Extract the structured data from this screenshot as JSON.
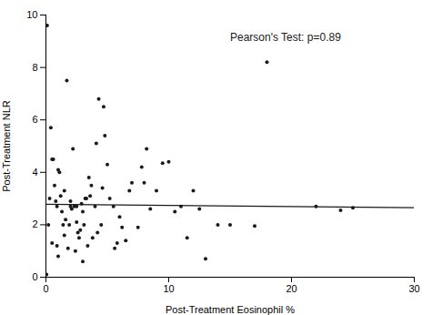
{
  "chart_data": {
    "type": "scatter",
    "x": [
      0.05,
      0.1,
      0.2,
      0.3,
      0.4,
      0.5,
      0.5,
      0.6,
      0.7,
      0.8,
      0.9,
      0.9,
      1.0,
      1.0,
      1.1,
      1.2,
      1.3,
      1.4,
      1.5,
      1.5,
      1.6,
      1.7,
      1.8,
      1.9,
      2.0,
      2.0,
      2.1,
      2.2,
      2.3,
      2.4,
      2.5,
      2.5,
      2.6,
      2.7,
      2.8,
      2.9,
      3.0,
      3.0,
      3.1,
      3.2,
      3.3,
      3.4,
      3.5,
      3.6,
      3.7,
      3.8,
      4.0,
      4.1,
      4.2,
      4.3,
      4.5,
      4.6,
      4.7,
      4.8,
      5.0,
      5.2,
      5.5,
      5.6,
      5.8,
      6.0,
      6.2,
      6.5,
      6.8,
      7.0,
      7.5,
      7.8,
      8.0,
      8.2,
      8.5,
      9.0,
      9.5,
      10.0,
      10.5,
      11.0,
      11.5,
      12.0,
      12.5,
      13.0,
      14.0,
      15.0,
      17.0,
      18.0,
      22.0,
      24.0,
      25.0
    ],
    "values": [
      0.1,
      9.6,
      2.0,
      3.0,
      5.7,
      1.3,
      4.5,
      4.5,
      3.5,
      2.9,
      2.7,
      1.2,
      0.8,
      4.1,
      4.0,
      3.1,
      2.5,
      2.0,
      1.6,
      3.3,
      2.2,
      7.5,
      1.1,
      2.0,
      2.9,
      2.7,
      2.6,
      4.9,
      2.7,
      1.0,
      2.7,
      2.1,
      1.7,
      1.5,
      1.8,
      2.8,
      0.6,
      2.5,
      2.0,
      3.0,
      3.0,
      1.2,
      3.8,
      3.1,
      3.5,
      1.5,
      2.7,
      5.1,
      1.7,
      6.8,
      2.0,
      3.4,
      6.5,
      5.4,
      4.3,
      3.0,
      2.7,
      1.1,
      1.3,
      2.3,
      1.9,
      1.4,
      3.3,
      3.6,
      1.9,
      4.2,
      3.6,
      4.9,
      2.6,
      3.3,
      4.35,
      4.4,
      2.5,
      2.7,
      1.5,
      3.3,
      2.6,
      0.7,
      2.0,
      2.0,
      1.95,
      8.2,
      2.7,
      2.55,
      2.65
    ],
    "color": "#1a1a1a",
    "line": {
      "x": [
        0,
        30
      ],
      "y": [
        2.78,
        2.65
      ],
      "color": "#1a1a1a"
    },
    "annotations": [
      {
        "text": "Pearson's Test: p=0.89",
        "x": 15,
        "y": 9.3
      }
    ],
    "xlabel": "Post-Treatment Eosinophil %",
    "ylabel": "Post-Treatment NLR",
    "xlim": [
      0,
      30
    ],
    "ylim": [
      0,
      10
    ],
    "xticks": [
      0,
      10,
      20,
      30
    ],
    "yticks": [
      0,
      2,
      4,
      6,
      8,
      10
    ],
    "grid": false
  }
}
